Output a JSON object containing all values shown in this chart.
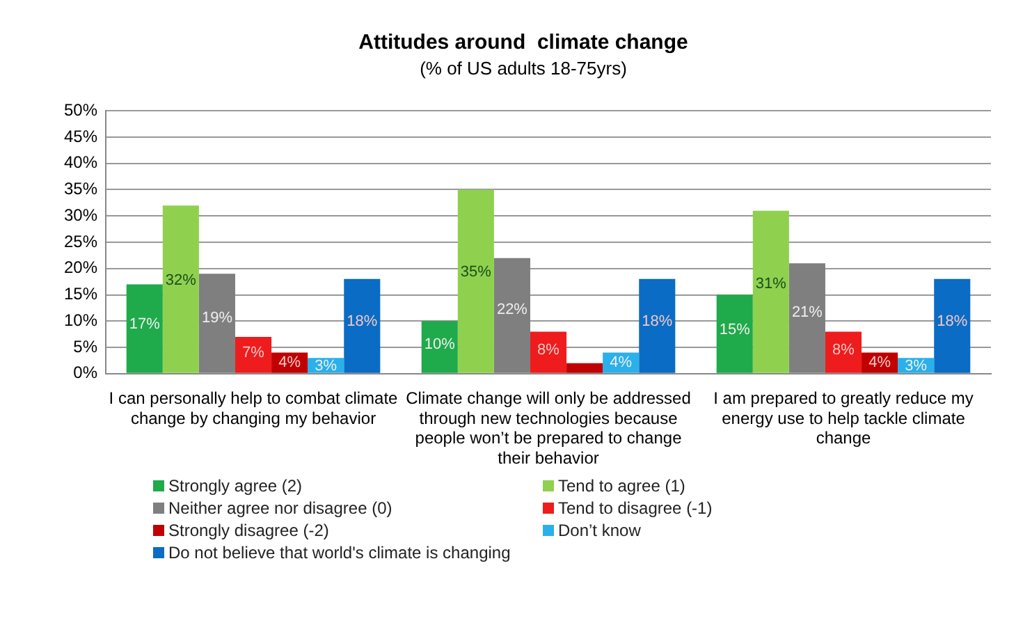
{
  "chart_data": {
    "type": "bar",
    "title": "Attitudes around  climate change",
    "subtitle": "(% of US adults 18-75yrs)",
    "categories": [
      "I can personally help to combat climate change by changing my behavior",
      "Climate change will only be addressed through new technologies because people won’t be prepared to change their behavior",
      "I am prepared to greatly reduce my energy use to help tackle climate change"
    ],
    "series": [
      {
        "name": "Strongly agree (2)",
        "color": "#1faa4b",
        "values": [
          17,
          10,
          15
        ],
        "value_labels": [
          "17%",
          "10%",
          "15%"
        ]
      },
      {
        "name": "Tend to agree (1)",
        "color": "#8fd14f",
        "values": [
          32,
          35,
          31
        ],
        "value_labels": [
          "32%",
          "35%",
          "31%"
        ]
      },
      {
        "name": "Neither agree nor disagree (0)",
        "color": "#7f7f7f",
        "values": [
          19,
          22,
          21
        ],
        "value_labels": [
          "19%",
          "22%",
          "21%"
        ]
      },
      {
        "name": "Tend to disagree (-1)",
        "color": "#ee1c1c",
        "values": [
          7,
          8,
          8
        ],
        "value_labels": [
          "7%",
          "8%",
          "8%"
        ]
      },
      {
        "name": "Strongly disagree (-2)",
        "color": "#c00000",
        "values": [
          4,
          2,
          4
        ],
        "value_labels": [
          "4%",
          null,
          "4%"
        ]
      },
      {
        "name": "Don’t know",
        "color": "#2ab0ea",
        "values": [
          3,
          4,
          3
        ],
        "value_labels": [
          "3%",
          "4%",
          "3%"
        ]
      },
      {
        "name": "Do not believe that world's climate is changing",
        "color": "#0a6cc4",
        "values": [
          18,
          18,
          18
        ],
        "value_labels": [
          "18%",
          "18%",
          "18%"
        ]
      }
    ],
    "ylim": [
      0,
      50
    ],
    "yticks": [
      {
        "value": 0,
        "label": "0%"
      },
      {
        "value": 5,
        "label": "5%"
      },
      {
        "value": 10,
        "label": "10%"
      },
      {
        "value": 15,
        "label": "15%"
      },
      {
        "value": 20,
        "label": "20%"
      },
      {
        "value": 25,
        "label": "25%"
      },
      {
        "value": 30,
        "label": "30%"
      },
      {
        "value": 35,
        "label": "35%"
      },
      {
        "value": 40,
        "label": "40%"
      },
      {
        "value": 45,
        "label": "45%"
      },
      {
        "value": 50,
        "label": "50%"
      }
    ],
    "grid": "y",
    "legend": "bottom"
  }
}
